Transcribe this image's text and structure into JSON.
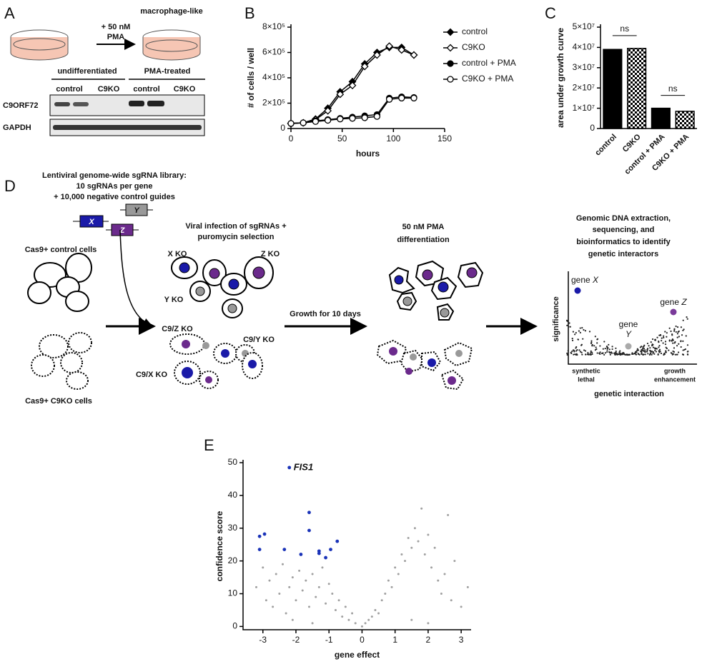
{
  "panels": {
    "A": {
      "letter": "A",
      "treatment": [
        "+ 50 nM",
        "PMA"
      ],
      "result": "macrophage-like",
      "groups": [
        "undifferentiated",
        "PMA-treated"
      ],
      "lanes": [
        "control",
        "C9KO",
        "control",
        "C9KO"
      ],
      "blots": [
        "C9ORF72",
        "GAPDH"
      ]
    },
    "B": {
      "letter": "B"
    },
    "C": {
      "letter": "C"
    },
    "D": {
      "letter": "D",
      "library": [
        "Lentiviral genome-wide sgRNA library:",
        "10 sgRNAs per gene",
        "+ 10,000 negative control guides"
      ],
      "guides": [
        "X",
        "Y",
        "Z"
      ],
      "control_cells": "Cas9+ control cells",
      "c9ko_cells": "Cas9+ C9KO cells",
      "infection": [
        "Viral infection of sgRNAs +",
        "puromycin selection"
      ],
      "ko_labels": [
        "X KO",
        "Z KO",
        "Y KO",
        "C9/Z KO",
        "C9/Y KO",
        "C9/X KO"
      ],
      "growth": "Growth for 10 days",
      "pma": [
        "50 nM PMA",
        "differentiation"
      ],
      "analysis": [
        "Genomic DNA extraction,",
        "sequencing, and",
        "bioinformatics to identify",
        "genetic interactors"
      ],
      "plot": {
        "ylabel": "significance",
        "gene_x": [
          "gene ",
          "X"
        ],
        "gene_z": [
          "gene ",
          "Z"
        ],
        "gene_y": [
          "gene",
          "Y"
        ],
        "left": [
          "synthetic",
          "lethal"
        ],
        "right": [
          "growth",
          "enhancement"
        ],
        "xlabel": "genetic interaction"
      }
    },
    "E": {
      "letter": "E"
    }
  },
  "chart_data": [
    {
      "type": "line",
      "xlabel": "hours",
      "ylabel": "# of cells / well",
      "x": [
        0,
        12,
        24,
        36,
        48,
        60,
        72,
        84,
        96,
        108,
        120
      ],
      "xlim": [
        0,
        150
      ],
      "xticks": [
        0,
        50,
        100,
        150
      ],
      "ylim": [
        0,
        800000
      ],
      "yticks": [
        0,
        {
          "value": 200000,
          "label": "2×10⁵"
        },
        {
          "value": 400000,
          "label": "4×10⁵"
        },
        {
          "value": 600000,
          "label": "6×10⁵"
        },
        {
          "value": 800000,
          "label": "8×10⁵"
        }
      ],
      "series": [
        {
          "name": "control",
          "color": "#000000",
          "marker": "diamond",
          "filled": true,
          "values": [
            40000,
            45000,
            75000,
            160000,
            290000,
            370000,
            510000,
            600000,
            640000,
            640000,
            580000
          ]
        },
        {
          "name": "C9KO",
          "color": "#000000",
          "marker": "diamond",
          "filled": false,
          "values": [
            40000,
            45000,
            70000,
            140000,
            270000,
            340000,
            490000,
            580000,
            650000,
            620000,
            580000
          ]
        },
        {
          "name": "control + PMA",
          "color": "#000000",
          "marker": "circle",
          "filled": true,
          "values": [
            40000,
            45000,
            60000,
            70000,
            80000,
            90000,
            100000,
            110000,
            240000,
            250000,
            245000
          ]
        },
        {
          "name": "C9KO + PMA",
          "color": "#000000",
          "marker": "circle",
          "filled": false,
          "values": [
            40000,
            45000,
            55000,
            65000,
            75000,
            80000,
            85000,
            95000,
            230000,
            240000,
            240000
          ]
        }
      ]
    },
    {
      "type": "bar",
      "ylabel": "area under growth curve",
      "categories": [
        "control",
        "C9KO",
        "control + PMA",
        "C9KO + PMA"
      ],
      "values": [
        39000000,
        39500000,
        10000000,
        8500000
      ],
      "fills": [
        "solid",
        "checker",
        "solid",
        "checker"
      ],
      "color": "#000000",
      "ylim": [
        0,
        50000000
      ],
      "yticks": [
        0,
        {
          "value": 10000000,
          "label": "1×10⁷"
        },
        {
          "value": 20000000,
          "label": "2×10⁷"
        },
        {
          "value": 30000000,
          "label": "3×10⁷"
        },
        {
          "value": 40000000,
          "label": "4×10⁷"
        },
        {
          "value": 50000000,
          "label": "5×10⁷"
        }
      ],
      "annotations": [
        "ns",
        "ns"
      ]
    },
    {
      "type": "scatter",
      "xlabel": "gene effect",
      "ylabel": "confidence score",
      "annotation": "FIS1",
      "xlim": [
        -3.6,
        3.3
      ],
      "xticks": [
        -3,
        -2,
        -1,
        0,
        1,
        2,
        3
      ],
      "ylim": [
        -1,
        50
      ],
      "yticks": [
        0,
        10,
        20,
        30,
        40,
        50
      ],
      "series": [
        {
          "color": "#1a33b8",
          "x": [
            -2.2,
            -3.1,
            -2.95,
            -3.1,
            -2.35,
            -1.6,
            -1.6,
            -1.3,
            -1.3,
            -1.85,
            -1.1,
            -0.95,
            -0.75
          ],
          "values": [
            48.5,
            27.5,
            28.2,
            23.5,
            23.5,
            34.8,
            29.3,
            23,
            22.3,
            22,
            21,
            23.5,
            26
          ]
        },
        {
          "color": "#a0a0a0",
          "x": [
            -3.2,
            -3.0,
            -2.9,
            -2.8,
            -2.7,
            -2.6,
            -2.5,
            -2.4,
            -2.3,
            -2.2,
            -2.1,
            -2.0,
            -1.9,
            -1.8,
            -1.7,
            -1.6,
            -1.5,
            -1.4,
            -1.3,
            -1.2,
            -1.1,
            -1.0,
            -0.9,
            -0.8,
            -0.7,
            -0.6,
            -0.5,
            -0.4,
            -0.3,
            -0.2,
            0.0,
            0.1,
            0.2,
            0.3,
            0.4,
            0.5,
            0.6,
            0.7,
            0.8,
            0.9,
            1.0,
            1.1,
            1.2,
            1.3,
            1.4,
            1.5,
            1.6,
            1.7,
            1.8,
            1.9,
            2.0,
            2.1,
            2.2,
            2.3,
            2.4,
            2.5,
            2.6,
            2.7,
            2.8,
            3.0,
            3.2,
            -2.1,
            1.5,
            -1.5,
            2.0
          ],
          "values": [
            12,
            18,
            8,
            14,
            6,
            16,
            10,
            19,
            4,
            12,
            15,
            8,
            17,
            11,
            14,
            6,
            16,
            9,
            12,
            18,
            7,
            13,
            10,
            5,
            8,
            3,
            6,
            2,
            4,
            1,
            0,
            1,
            2,
            3,
            5,
            4,
            8,
            10,
            14,
            12,
            18,
            16,
            22,
            20,
            27,
            24,
            30,
            26,
            36,
            22,
            28,
            18,
            24,
            14,
            10,
            16,
            34,
            8,
            20,
            6,
            12,
            2,
            2,
            1,
            1
          ]
        }
      ]
    }
  ]
}
